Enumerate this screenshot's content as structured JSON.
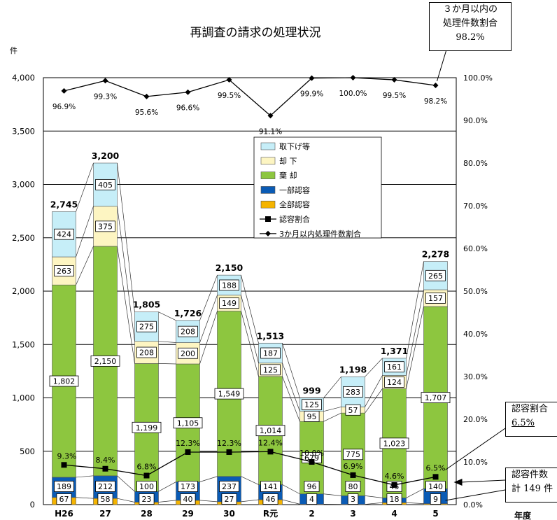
{
  "chart_data": {
    "type": "bar",
    "title": "再調査の請求の処理状況",
    "ylabel": "件",
    "xlabel": "年度",
    "ylim": [
      0,
      4000
    ],
    "y2lim": [
      0,
      100
    ],
    "yticks": [
      "0",
      "500",
      "1,000",
      "1,500",
      "2,000",
      "2,500",
      "3,000",
      "3,500",
      "4,000"
    ],
    "y2ticks": [
      "0.0%",
      "10.0%",
      "20.0%",
      "30.0%",
      "40.0%",
      "50.0%",
      "60.0%",
      "70.0%",
      "80.0%",
      "90.0%",
      "100.0%"
    ],
    "categories": [
      "H26",
      "27",
      "28",
      "29",
      "30",
      "R元",
      "2",
      "3",
      "4",
      "5"
    ],
    "totals": [
      2745,
      3200,
      1805,
      1726,
      2150,
      1513,
      999,
      1198,
      1371,
      2278
    ],
    "total_labels": [
      "2,745",
      "3,200",
      "1,805",
      "1,726",
      "2,150",
      "1,513",
      "999",
      "1,198",
      "1,371",
      "2,278"
    ],
    "series": [
      {
        "name": "全部認容",
        "color": "#f5b400",
        "values": [
          67,
          58,
          23,
          40,
          27,
          46,
          4,
          3,
          18,
          9
        ],
        "labels": [
          "67",
          "58",
          "23",
          "40",
          "27",
          "46",
          "4",
          "3",
          "18",
          "9"
        ]
      },
      {
        "name": "一部認容",
        "color": "#0a5bb5",
        "values": [
          189,
          212,
          100,
          173,
          237,
          141,
          96,
          80,
          45,
          140
        ],
        "labels": [
          "189",
          "212",
          "100",
          "173",
          "237",
          "141",
          "96",
          "80",
          "45",
          "140"
        ]
      },
      {
        "name": "棄 却",
        "color": "#8dc63f",
        "values": [
          1802,
          2150,
          1199,
          1105,
          1549,
          1014,
          679,
          775,
          1023,
          1707
        ],
        "labels": [
          "1,802",
          "2,150",
          "1,199",
          "1,105",
          "1,549",
          "1,014",
          "679",
          "775",
          "1,023",
          "1,707"
        ]
      },
      {
        "name": "却 下",
        "color": "#fdf5c2",
        "values": [
          263,
          375,
          208,
          200,
          149,
          125,
          95,
          57,
          124,
          157
        ],
        "labels": [
          "263",
          "375",
          "208",
          "200",
          "149",
          "125",
          "95",
          "57",
          "124",
          "157"
        ]
      },
      {
        "name": "取下げ等",
        "color": "#c6eef8",
        "values": [
          424,
          405,
          275,
          208,
          188,
          187,
          125,
          283,
          161,
          265
        ],
        "labels": [
          "424",
          "405",
          "275",
          "208",
          "188",
          "187",
          "125",
          "283",
          "161",
          "265"
        ]
      }
    ],
    "lines": [
      {
        "name": "認容割合",
        "color": "#000000",
        "marker": "square",
        "values": [
          9.3,
          8.4,
          6.8,
          12.3,
          12.3,
          12.4,
          10.0,
          6.9,
          4.6,
          6.5
        ],
        "labels": [
          "9.3%",
          "8.4%",
          "6.8%",
          "12.3%",
          "12.3%",
          "12.4%",
          "10.0%",
          "6.9%",
          "4.6%",
          "6.5%"
        ]
      },
      {
        "name": "3か月以内処理件数割合",
        "color": "#000000",
        "marker": "diamond",
        "values": [
          96.9,
          99.3,
          95.6,
          96.6,
          99.5,
          91.1,
          99.9,
          100.0,
          99.5,
          98.2
        ],
        "labels": [
          "96.9%",
          "99.3%",
          "95.6%",
          "96.6%",
          "99.5%",
          "91.1%",
          "99.9%",
          "100.0%",
          "99.5%",
          "98.2%"
        ]
      }
    ],
    "legend_placement": "upper-center",
    "grid": true
  },
  "callouts": {
    "top": [
      "３か月以内の",
      "処理件数割合",
      "98.2%"
    ],
    "rate": [
      "認容割合",
      "6.5%"
    ],
    "count": [
      "認容件数",
      "計 149 件"
    ]
  }
}
